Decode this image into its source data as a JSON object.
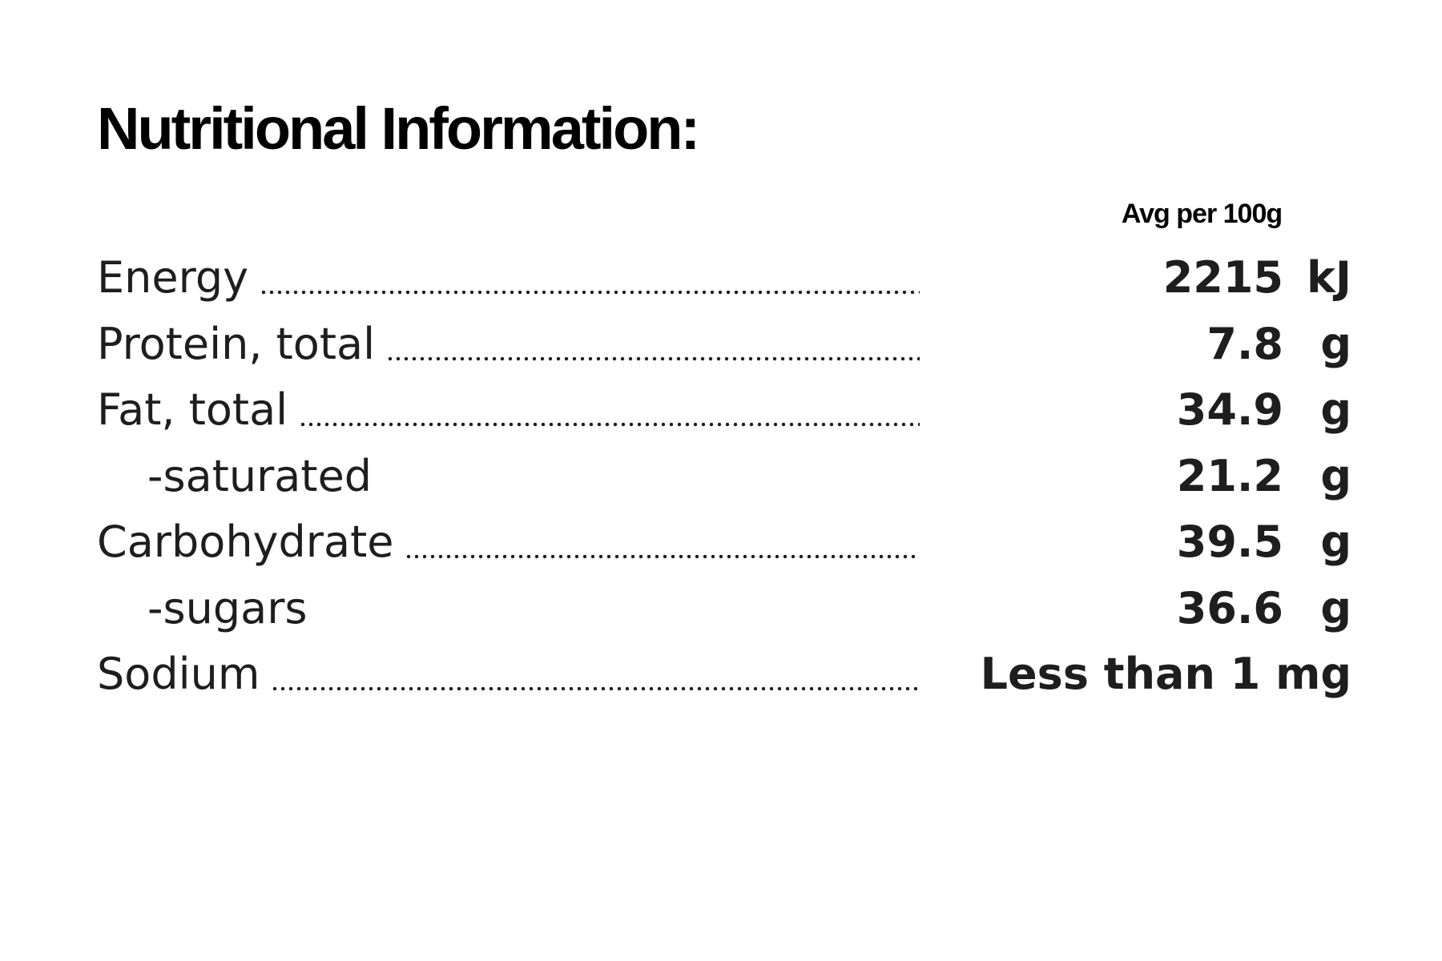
{
  "header": {
    "title": "Nutritional Information:",
    "column": "Avg per 100g"
  },
  "table": {
    "rows": [
      {
        "label": "Energy",
        "value": 2215,
        "unit": "kJ"
      },
      {
        "label": "Protein, total",
        "value": 7.8,
        "unit": "g"
      },
      {
        "label": "Fat, total",
        "value": 34.9,
        "unit": "g"
      },
      {
        "label": "-saturated",
        "value": 21.2,
        "unit": "g",
        "indent": true
      },
      {
        "label": "Carbohydrate",
        "value": 39.5,
        "unit": "g"
      },
      {
        "label": "-sugars",
        "value": 36.6,
        "unit": "g",
        "indent": true
      },
      {
        "label": "Sodium",
        "value": "Less than 1 mg"
      }
    ]
  }
}
